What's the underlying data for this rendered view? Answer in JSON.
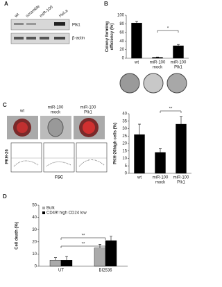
{
  "panels": [
    "A",
    "B",
    "C",
    "D"
  ],
  "panel_a": {
    "lanes": [
      "wt",
      "scramble",
      "miR-100",
      "HeLa"
    ],
    "rows": [
      "Plk1",
      "β-actin"
    ]
  },
  "panel_c_images": {
    "columns": [
      [
        "wt"
      ],
      [
        "miR-100",
        "mock"
      ],
      [
        "miR-100",
        "Plk1"
      ]
    ],
    "y_label": "PKH-26",
    "x_label": "FSC"
  },
  "chart_data": [
    {
      "type": "bar",
      "y_label": [
        "Colony forming",
        "efficiency (%)"
      ],
      "categories": [
        [
          "wt"
        ],
        [
          "miR-100",
          "mock"
        ],
        [
          "miR-100",
          "Plk1"
        ]
      ],
      "values": [
        82,
        2,
        29
      ],
      "errors": [
        4,
        1,
        3
      ],
      "color": "#000000",
      "ylim": [
        0,
        100
      ],
      "yticks": [
        0,
        20,
        40,
        60,
        80,
        100
      ],
      "annotations": [
        "*"
      ]
    },
    {
      "type": "bar",
      "y_label": [
        "PKH-26high cells (%)"
      ],
      "categories": [
        [
          "wt"
        ],
        [
          "miR-100",
          "mock"
        ],
        [
          "miR-100",
          "Plk1"
        ]
      ],
      "values": [
        26,
        14,
        33
      ],
      "errors": [
        7,
        2.5,
        5
      ],
      "color": "#000000",
      "ylim": [
        0,
        40
      ],
      "yticks": [
        0,
        5,
        10,
        15,
        20,
        25,
        30,
        35,
        40
      ],
      "annotations": [
        "**"
      ]
    },
    {
      "type": "bar",
      "y_label": [
        "Cell death (%)"
      ],
      "categories": [
        [
          "UT"
        ],
        [
          "BI2536"
        ]
      ],
      "series": [
        {
          "name": "Bulk",
          "color": "#aaaaaa",
          "values": [
            5,
            15
          ],
          "errors": [
            2,
            3
          ]
        },
        {
          "name": "CD49f high CD24 low",
          "color": "#000000",
          "values": [
            5,
            21
          ],
          "errors": [
            3,
            3.5
          ]
        }
      ],
      "ylim": [
        0,
        50
      ],
      "yticks": [
        0,
        10,
        20,
        30,
        40,
        50
      ],
      "legend": "top-left",
      "annotations": [
        "**",
        "**"
      ]
    }
  ]
}
